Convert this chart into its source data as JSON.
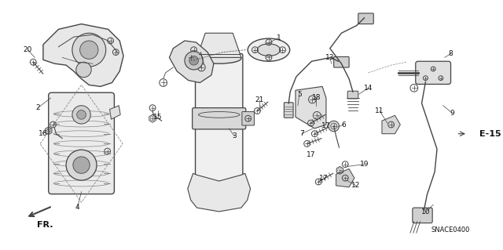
{
  "bg_color": "#ffffff",
  "line_color": "#444444",
  "text_color": "#111111",
  "diagram_code": "SNACE0400",
  "ref_label": "E-15",
  "fr_label": "FR.",
  "font_size_labels": 6.5,
  "font_size_code": 6,
  "font_size_ref": 8,
  "figsize": [
    6.4,
    3.19
  ],
  "dpi": 100
}
